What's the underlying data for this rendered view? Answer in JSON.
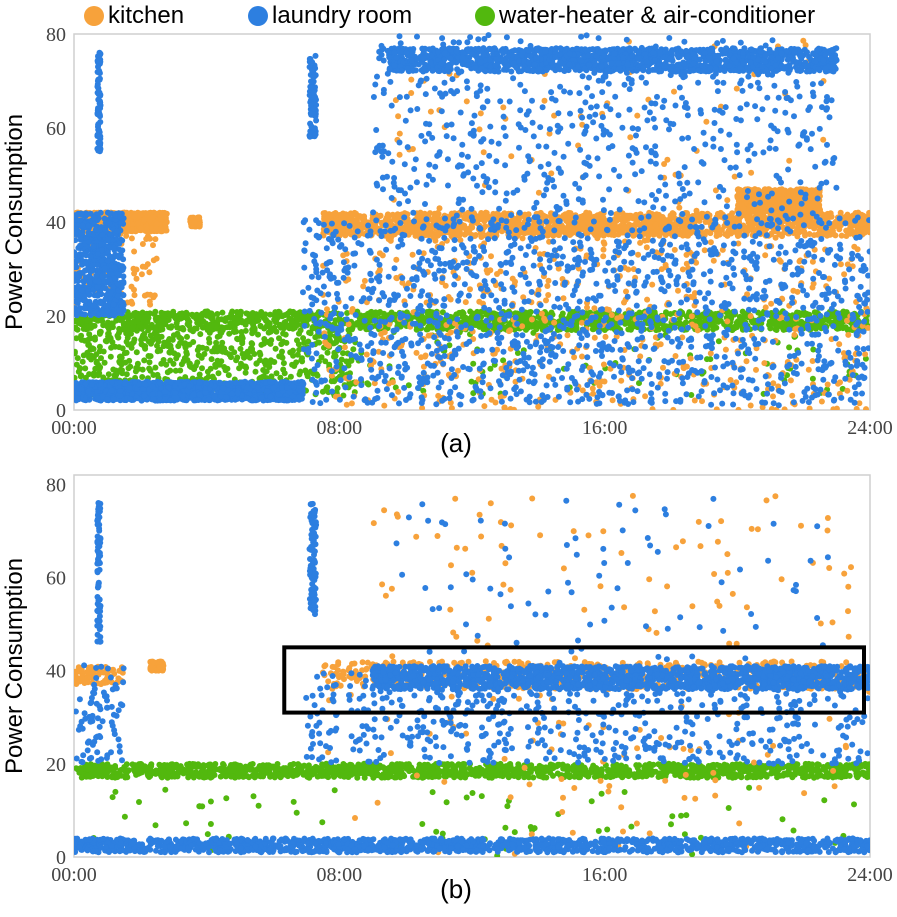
{
  "legend": {
    "items": [
      {
        "label": "kitchen",
        "color": "#F7A23B"
      },
      {
        "label": "laundry room",
        "color": "#2D7FE0"
      },
      {
        "label": "water-heater & air-conditioner",
        "color": "#52B80E"
      }
    ]
  },
  "chart_data": [
    {
      "type": "scatter",
      "panel_label": "(a)",
      "ylabel": "Power Consumption",
      "xlabel": "",
      "xlim": [
        0,
        24
      ],
      "ylim": [
        0,
        80
      ],
      "xticks": [
        "00:00",
        "08:00",
        "16:00",
        "24:00"
      ],
      "yticks": [
        "0",
        "20",
        "40",
        "60",
        "80"
      ],
      "grid": false,
      "series": [
        {
          "name": "kitchen",
          "color": "#F7A23B",
          "bands": [
            {
              "x": [
                0.0,
                2.8
              ],
              "y": [
                38,
                42
              ],
              "density": "high"
            },
            {
              "x": [
                3.5,
                3.8
              ],
              "y": [
                39,
                41
              ],
              "density": "low"
            },
            {
              "x": [
                7.5,
                24.0
              ],
              "y": [
                37,
                42
              ],
              "density": "high"
            },
            {
              "x": [
                7.5,
                24.0
              ],
              "y": [
                0,
                40
              ],
              "density": "medium"
            },
            {
              "x": [
                9.5,
                23.3
              ],
              "y": [
                42,
                80
              ],
              "density": "low"
            },
            {
              "x": [
                20.0,
                22.5
              ],
              "y": [
                42,
                47
              ],
              "density": "medium"
            },
            {
              "x": [
                0.0,
                2.5
              ],
              "y": [
                22,
                40
              ],
              "density": "low"
            }
          ]
        },
        {
          "name": "laundry room",
          "color": "#2D7FE0",
          "bands": [
            {
              "x": [
                0.0,
                1.5
              ],
              "y": [
                20,
                42
              ],
              "density": "medium"
            },
            {
              "x": [
                0.0,
                6.9
              ],
              "y": [
                2,
                6
              ],
              "density": "high"
            },
            {
              "x": [
                6.9,
                24.0
              ],
              "y": [
                1,
                41
              ],
              "density": "high"
            },
            {
              "x": [
                9.0,
                23.0
              ],
              "y": [
                41,
                80
              ],
              "density": "medium"
            },
            {
              "x": [
                9.5,
                23.0
              ],
              "y": [
                72,
                77
              ],
              "density": "high"
            },
            {
              "x": [
                0.7,
                0.8
              ],
              "y": [
                55,
                76
              ],
              "density": "low"
            },
            {
              "x": [
                7.1,
                7.3
              ],
              "y": [
                58,
                76
              ],
              "density": "low"
            }
          ]
        },
        {
          "name": "water-heater & air-conditioner",
          "color": "#52B80E",
          "bands": [
            {
              "x": [
                0.0,
                24.0
              ],
              "y": [
                17,
                21
              ],
              "density": "high"
            },
            {
              "x": [
                0.0,
                8.5
              ],
              "y": [
                3,
                17
              ],
              "density": "medium"
            },
            {
              "x": [
                8.5,
                24.0
              ],
              "y": [
                3,
                17
              ],
              "density": "low"
            }
          ]
        }
      ]
    },
    {
      "type": "scatter",
      "panel_label": "(b)",
      "ylabel": "Power Consumption",
      "xlabel": "",
      "xlim": [
        0,
        24
      ],
      "ylim": [
        0,
        82
      ],
      "xticks": [
        "00:00",
        "08:00",
        "16:00",
        "24:00"
      ],
      "yticks": [
        "0",
        "20",
        "40",
        "60",
        "80"
      ],
      "grid": false,
      "highlight_box": {
        "x": [
          6.4,
          24.0
        ],
        "y": [
          31,
          45
        ]
      },
      "series": [
        {
          "name": "kitchen",
          "color": "#F7A23B",
          "bands": [
            {
              "x": [
                0.0,
                1.5
              ],
              "y": [
                37,
                41
              ],
              "density": "low"
            },
            {
              "x": [
                2.3,
                2.7
              ],
              "y": [
                40,
                42
              ],
              "density": "low"
            },
            {
              "x": [
                7.5,
                24.0
              ],
              "y": [
                36,
                42
              ],
              "density": "medium"
            },
            {
              "x": [
                7.5,
                24.0
              ],
              "y": [
                0,
                36
              ],
              "density": "low"
            },
            {
              "x": [
                9.0,
                23.5
              ],
              "y": [
                42,
                78
              ],
              "density": "low"
            }
          ]
        },
        {
          "name": "laundry room",
          "color": "#2D7FE0",
          "bands": [
            {
              "x": [
                0.0,
                24.0
              ],
              "y": [
                1,
                4
              ],
              "density": "high"
            },
            {
              "x": [
                7.0,
                24.0
              ],
              "y": [
                20,
                40
              ],
              "density": "medium"
            },
            {
              "x": [
                9.0,
                24.0
              ],
              "y": [
                36,
                41
              ],
              "density": "high"
            },
            {
              "x": [
                9.0,
                23.0
              ],
              "y": [
                41,
                78
              ],
              "density": "low"
            },
            {
              "x": [
                0.0,
                1.5
              ],
              "y": [
                20,
                42
              ],
              "density": "low"
            },
            {
              "x": [
                0.7,
                0.8
              ],
              "y": [
                45,
                76
              ],
              "density": "low"
            },
            {
              "x": [
                7.1,
                7.3
              ],
              "y": [
                52,
                76
              ],
              "density": "low"
            }
          ]
        },
        {
          "name": "water-heater & air-conditioner",
          "color": "#52B80E",
          "bands": [
            {
              "x": [
                0.0,
                24.0
              ],
              "y": [
                17,
                20
              ],
              "density": "high"
            },
            {
              "x": [
                0.0,
                24.0
              ],
              "y": [
                0,
                15
              ],
              "density": "low"
            }
          ]
        }
      ]
    }
  ]
}
